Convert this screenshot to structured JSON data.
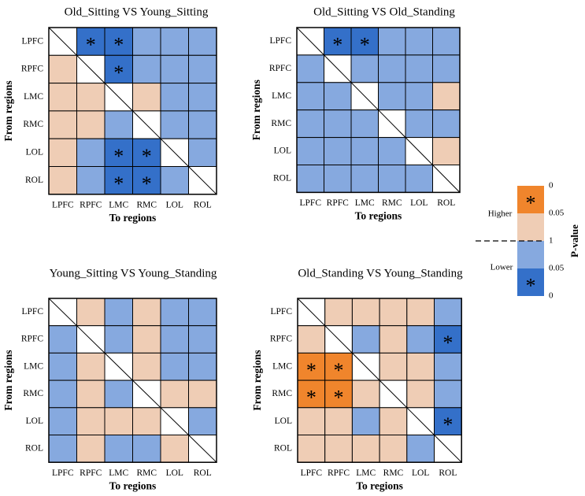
{
  "chart_data": {
    "type": "heatmap",
    "regions": [
      "LPFC",
      "RPFC",
      "LMC",
      "RMC",
      "LOL",
      "ROL"
    ],
    "xlabel": "To regions",
    "ylabel": "From regions",
    "category_codes": {
      "H*": "Higher, p < 0.05",
      "H": "Higher, 0.05 < p < 1",
      "L": "Lower, 0.05 < p < 1",
      "L*": "Lower, p < 0.05",
      "D": "Diagonal (self)"
    },
    "panels": [
      {
        "title": "Old_Sitting VS Young_Sitting",
        "show_ylabel": true,
        "matrix": [
          [
            "D",
            "L*",
            "L*",
            "L",
            "L",
            "L"
          ],
          [
            "H",
            "D",
            "L*",
            "L",
            "L",
            "L"
          ],
          [
            "H",
            "H",
            "D",
            "H",
            "L",
            "L"
          ],
          [
            "H",
            "H",
            "L",
            "D",
            "L",
            "L"
          ],
          [
            "H",
            "L",
            "L*",
            "L*",
            "D",
            "L"
          ],
          [
            "H",
            "L",
            "L*",
            "L*",
            "L",
            "D"
          ]
        ]
      },
      {
        "title": "Old_Sitting VS Old_Standing",
        "show_ylabel": true,
        "matrix": [
          [
            "D",
            "L*",
            "L*",
            "L",
            "L",
            "L"
          ],
          [
            "L",
            "D",
            "L",
            "L",
            "L",
            "L"
          ],
          [
            "L",
            "L",
            "D",
            "L",
            "L",
            "H"
          ],
          [
            "L",
            "L",
            "L",
            "D",
            "L",
            "L"
          ],
          [
            "L",
            "L",
            "L",
            "L",
            "D",
            "H"
          ],
          [
            "L",
            "L",
            "L",
            "L",
            "L",
            "D"
          ]
        ]
      },
      {
        "title": "Young_Sitting VS Young_Standing",
        "show_ylabel": true,
        "matrix": [
          [
            "D",
            "H",
            "L",
            "H",
            "L",
            "L"
          ],
          [
            "L",
            "D",
            "L",
            "H",
            "L",
            "L"
          ],
          [
            "L",
            "H",
            "D",
            "H",
            "L",
            "L"
          ],
          [
            "L",
            "H",
            "L",
            "D",
            "H",
            "H"
          ],
          [
            "L",
            "H",
            "H",
            "H",
            "D",
            "L"
          ],
          [
            "L",
            "H",
            "L",
            "L",
            "H",
            "D"
          ]
        ]
      },
      {
        "title": "Old_Standing VS Young_Standing",
        "show_ylabel": true,
        "matrix": [
          [
            "D",
            "H",
            "H",
            "H",
            "H",
            "L"
          ],
          [
            "H",
            "D",
            "L",
            "H",
            "L",
            "L*"
          ],
          [
            "H*",
            "H*",
            "D",
            "H",
            "H",
            "L"
          ],
          [
            "H*",
            "H*",
            "H",
            "D",
            "H",
            "L"
          ],
          [
            "H",
            "H",
            "L",
            "H",
            "D",
            "L*"
          ],
          [
            "H",
            "H",
            "H",
            "H",
            "L",
            "D"
          ]
        ]
      }
    ],
    "legend": {
      "title": "P-value",
      "higher_label": "Higher",
      "lower_label": "Lower",
      "ticks": [
        "0",
        "0.05",
        "1",
        "0.05",
        "0"
      ],
      "star": "*"
    },
    "colors": {
      "higher_sig": "#f0852c",
      "higher": "#efcdb5",
      "lower": "#86a9df",
      "lower_sig": "#3470c9",
      "diagonal": "#ffffff",
      "grid": "#000000"
    }
  }
}
